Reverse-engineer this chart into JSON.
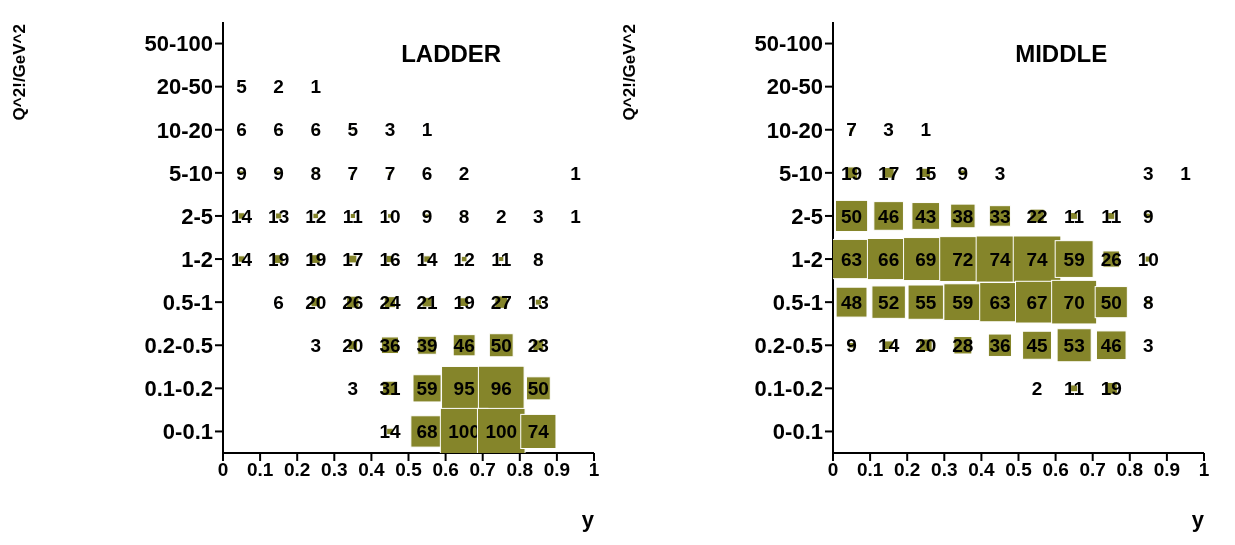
{
  "chart_data": [
    {
      "type": "heatmap",
      "title": "LADDER",
      "xlabel": "y",
      "ylabel": "Q^2!/GeV^2",
      "color": "#85852a",
      "data_labels": true,
      "x": [
        0.05,
        0.15,
        0.25,
        0.35,
        0.45,
        0.55,
        0.65,
        0.75,
        0.85,
        0.95
      ],
      "xlim": [
        0,
        1
      ],
      "xticks": [
        0,
        0.1,
        0.2,
        0.3,
        0.4,
        0.5,
        0.6,
        0.7,
        0.8,
        0.9,
        1
      ],
      "y_categories": [
        "50-100",
        "20-50",
        "10-20",
        "5-10",
        "2-5",
        "1-2",
        "0.5-1",
        "0.2-0.5",
        "0.1-0.2",
        "0-0.1"
      ],
      "cells": [
        [
          null,
          null,
          null,
          null,
          null,
          null,
          null,
          null,
          null,
          null
        ],
        [
          5,
          2,
          1,
          null,
          null,
          null,
          null,
          null,
          null,
          null
        ],
        [
          6,
          6,
          6,
          5,
          3,
          1,
          null,
          null,
          null,
          null
        ],
        [
          9,
          9,
          8,
          7,
          7,
          6,
          2,
          null,
          null,
          1
        ],
        [
          14,
          13,
          12,
          11,
          10,
          9,
          8,
          2,
          3,
          1
        ],
        [
          14,
          19,
          19,
          17,
          16,
          14,
          12,
          11,
          8,
          null
        ],
        [
          null,
          6,
          20,
          26,
          24,
          21,
          19,
          27,
          13,
          null
        ],
        [
          null,
          null,
          3,
          20,
          36,
          39,
          46,
          50,
          23,
          null
        ],
        [
          null,
          null,
          null,
          3,
          31,
          59,
          95,
          96,
          50,
          null
        ],
        [
          null,
          null,
          null,
          null,
          14,
          68,
          100,
          100,
          74,
          null
        ]
      ]
    },
    {
      "type": "heatmap",
      "title": "MIDDLE",
      "xlabel": "y",
      "ylabel": "Q^2!/GeV^2",
      "color": "#85852a",
      "data_labels": true,
      "x": [
        0.05,
        0.15,
        0.25,
        0.35,
        0.45,
        0.55,
        0.65,
        0.75,
        0.85,
        0.95
      ],
      "xlim": [
        0,
        1
      ],
      "xticks": [
        0,
        0.1,
        0.2,
        0.3,
        0.4,
        0.5,
        0.6,
        0.7,
        0.8,
        0.9,
        1
      ],
      "y_categories": [
        "50-100",
        "20-50",
        "10-20",
        "5-10",
        "2-5",
        "1-2",
        "0.5-1",
        "0.2-0.5",
        "0.1-0.2",
        "0-0.1"
      ],
      "cells": [
        [
          null,
          null,
          null,
          null,
          null,
          null,
          null,
          null,
          null,
          null
        ],
        [
          null,
          null,
          null,
          null,
          null,
          null,
          null,
          null,
          null,
          null
        ],
        [
          7,
          3,
          1,
          null,
          null,
          null,
          null,
          null,
          null,
          null
        ],
        [
          19,
          17,
          15,
          9,
          3,
          null,
          null,
          null,
          3,
          1
        ],
        [
          50,
          46,
          43,
          38,
          33,
          22,
          11,
          11,
          9,
          null
        ],
        [
          63,
          66,
          69,
          72,
          74,
          74,
          59,
          26,
          10,
          null
        ],
        [
          48,
          52,
          55,
          59,
          63,
          67,
          70,
          50,
          8,
          null
        ],
        [
          9,
          14,
          20,
          28,
          36,
          45,
          53,
          46,
          3,
          null
        ],
        [
          null,
          null,
          null,
          null,
          null,
          2,
          11,
          19,
          null,
          null
        ],
        [
          null,
          null,
          null,
          null,
          null,
          null,
          null,
          null,
          null,
          null
        ]
      ]
    }
  ]
}
